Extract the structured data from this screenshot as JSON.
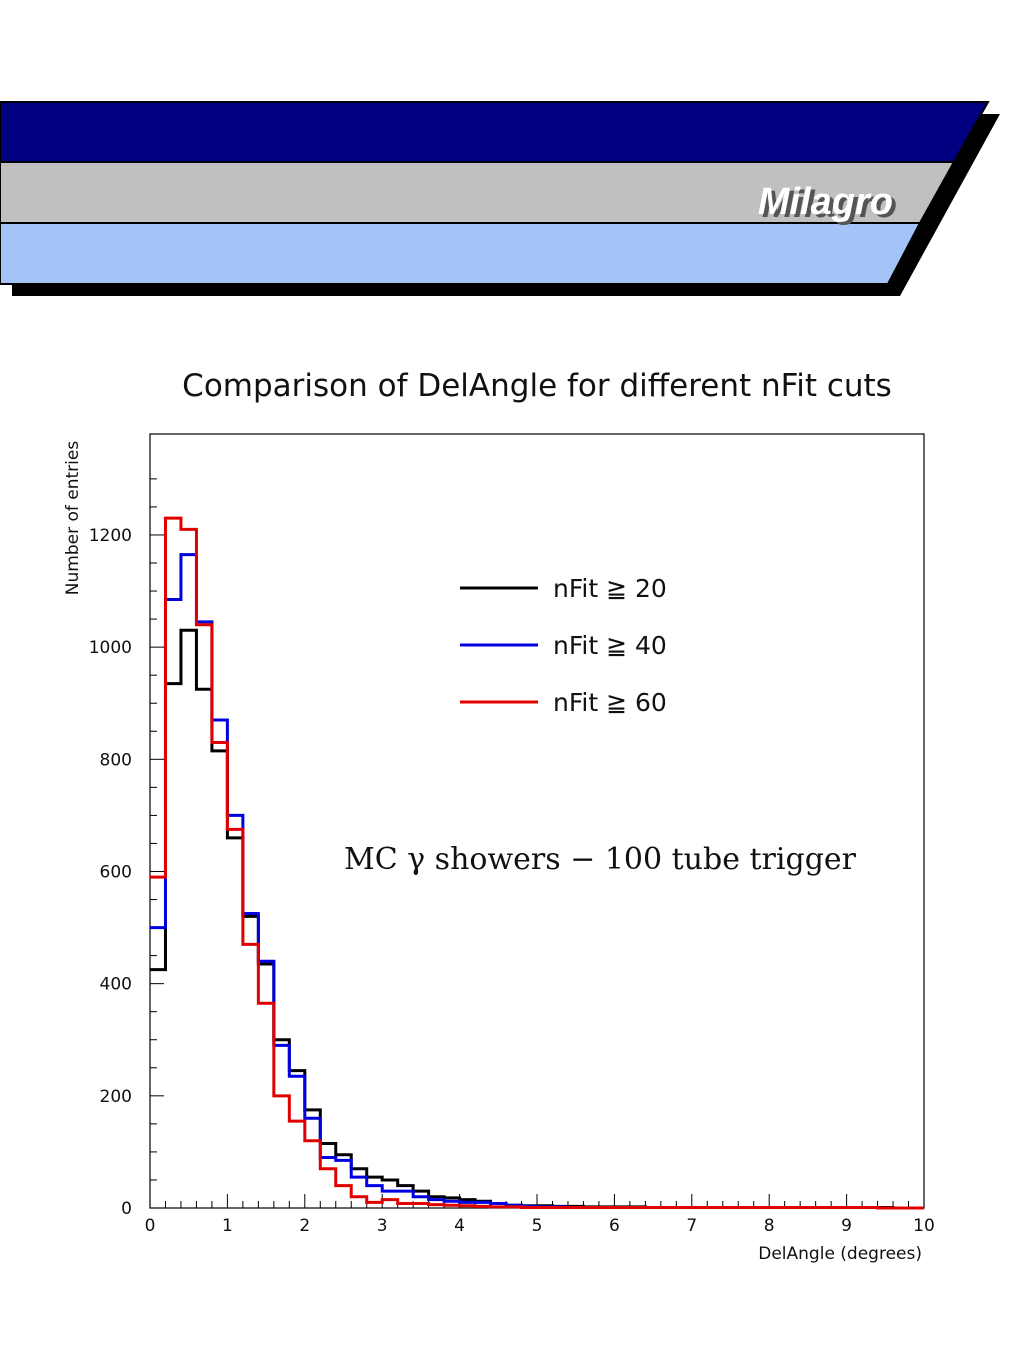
{
  "header": {
    "brand": "Milagro",
    "colors": {
      "top_band": "#000080",
      "middle_band": "#c0c0c0",
      "bottom_band": "#a4c4f8",
      "shadow": "#000000"
    }
  },
  "chart_data": {
    "type": "histogram",
    "title": "Comparison of DelAngle for different nFit cuts",
    "xlabel": "DelAngle (degrees)",
    "ylabel": "Number of entries",
    "xlim": [
      0,
      10
    ],
    "ylim": [
      0,
      1380
    ],
    "bin_width": 0.2,
    "x_ticks": [
      "0",
      "1",
      "2",
      "3",
      "4",
      "5",
      "6",
      "7",
      "8",
      "9",
      "10"
    ],
    "y_ticks": [
      "0",
      "200",
      "400",
      "600",
      "800",
      "1000",
      "1200"
    ],
    "annotation": "MC γ showers − 100 tube trigger",
    "legend_position": "upper-right",
    "grid": false,
    "series": [
      {
        "name": "nFit ≧ 20",
        "color": "#000000",
        "values": [
          425,
          935,
          1030,
          925,
          815,
          660,
          520,
          435,
          300,
          245,
          175,
          115,
          95,
          70,
          55,
          50,
          40,
          30,
          20,
          18,
          15,
          12,
          8,
          5,
          4,
          4,
          3,
          3,
          2,
          2,
          2,
          2,
          1,
          1,
          1,
          1,
          1,
          1,
          1,
          1,
          1,
          1,
          1,
          1,
          1,
          1,
          1,
          1,
          0,
          0
        ]
      },
      {
        "name": "nFit ≧ 40",
        "color": "#0000e0",
        "values": [
          500,
          1085,
          1165,
          1045,
          870,
          700,
          525,
          440,
          290,
          235,
          160,
          90,
          85,
          55,
          40,
          30,
          30,
          20,
          15,
          12,
          10,
          10,
          8,
          5,
          3,
          2,
          2,
          1,
          1,
          1,
          1,
          1,
          1,
          1,
          1,
          1,
          1,
          1,
          1,
          1,
          1,
          1,
          1,
          1,
          1,
          1,
          1,
          0,
          0,
          0
        ]
      },
      {
        "name": "nFit ≧ 60",
        "color": "#e00000",
        "values": [
          590,
          1230,
          1210,
          1040,
          830,
          675,
          470,
          365,
          200,
          155,
          120,
          70,
          40,
          20,
          10,
          15,
          8,
          8,
          6,
          5,
          4,
          3,
          2,
          2,
          1,
          1,
          1,
          1,
          1,
          1,
          1,
          1,
          1,
          1,
          1,
          1,
          1,
          1,
          1,
          1,
          1,
          1,
          1,
          1,
          1,
          1,
          1,
          0,
          0,
          0
        ]
      }
    ]
  }
}
